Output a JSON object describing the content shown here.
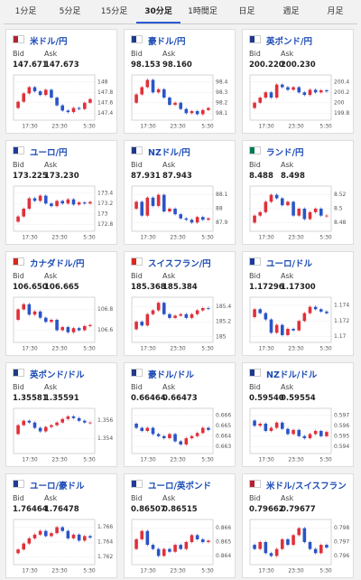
{
  "tabs": [
    {
      "label": "1分足"
    },
    {
      "label": "5分足"
    },
    {
      "label": "15分足"
    },
    {
      "label": "30分足",
      "active": true
    },
    {
      "label": "1時間足"
    },
    {
      "label": "日足"
    },
    {
      "label": "週足"
    },
    {
      "label": "月足"
    }
  ],
  "panels": [
    {
      "name": "米ドル/円",
      "flag_color": "#b22234",
      "bid_label": "Bid",
      "ask_label": "Ask",
      "bid": "147.671",
      "ask": "147.673",
      "chart": {
        "type": "candlestick",
        "values": [
          147.5,
          147.62,
          147.78,
          147.9,
          147.82,
          147.75,
          147.85,
          147.7,
          147.55,
          147.45,
          147.42,
          147.5,
          147.48,
          147.6,
          147.67
        ],
        "ylim": [
          147.3,
          148.1
        ],
        "yticks": [
          148,
          147.8,
          147.6,
          147.4
        ],
        "xticks": [
          "17:30",
          "23:30",
          "5:30"
        ]
      }
    },
    {
      "name": "豪ドル/円",
      "flag_color": "#1f3a8a",
      "bid_label": "Bid",
      "ask_label": "Ask",
      "bid": "98.153",
      "ask": "98.160",
      "chart": {
        "type": "candlestick",
        "values": [
          98.2,
          98.28,
          98.35,
          98.42,
          98.3,
          98.33,
          98.25,
          98.18,
          98.2,
          98.14,
          98.1,
          98.12,
          98.09,
          98.13,
          98.15
        ],
        "ylim": [
          98.05,
          98.45
        ],
        "yticks": [
          98.4,
          98.3,
          98.2,
          98.1
        ],
        "xticks": [
          "17:30",
          "23:30",
          "5:30"
        ]
      }
    },
    {
      "name": "英ポンド/円",
      "flag_color": "#1f3a8a",
      "bid_label": "Bid",
      "ask_label": "Ask",
      "bid": "200.220",
      "ask": "200.230",
      "chart": {
        "type": "candlestick",
        "values": [
          199.9,
          200.0,
          200.1,
          200.2,
          200.1,
          200.35,
          200.3,
          200.25,
          200.3,
          200.2,
          200.15,
          200.25,
          200.2,
          200.24,
          200.22
        ],
        "ylim": [
          199.7,
          200.5
        ],
        "yticks": [
          200.4,
          200.2,
          200,
          199.8
        ],
        "xticks": [
          "17:30",
          "23:30",
          "5:30"
        ]
      }
    },
    {
      "name": "ユーロ/円",
      "flag_color": "#1f3a9a",
      "bid_label": "Bid",
      "ask_label": "Ask",
      "bid": "173.225",
      "ask": "173.230",
      "chart": {
        "type": "candlestick",
        "values": [
          172.85,
          172.95,
          173.1,
          173.3,
          173.25,
          173.35,
          173.2,
          173.15,
          173.25,
          173.2,
          173.28,
          173.18,
          173.22,
          173.2,
          173.23
        ],
        "ylim": [
          172.7,
          173.5
        ],
        "yticks": [
          173.4,
          173.2,
          173,
          172.8
        ],
        "xticks": [
          "17:30",
          "23:30",
          "5:30"
        ]
      }
    },
    {
      "name": "NZドル/円",
      "flag_color": "#1f3a8a",
      "bid_label": "Bid",
      "ask_label": "Ask",
      "bid": "87.931",
      "ask": "87.943",
      "chart": {
        "type": "candlestick",
        "values": [
          88.0,
          88.05,
          87.95,
          88.08,
          88.02,
          88.1,
          87.98,
          88.0,
          87.96,
          87.93,
          87.92,
          87.9,
          87.94,
          87.92,
          87.93
        ],
        "ylim": [
          87.85,
          88.15
        ],
        "yticks": [
          88.1,
          88,
          87.9
        ],
        "xticks": [
          "17:30",
          "23:30",
          "5:30"
        ]
      }
    },
    {
      "name": "ランド/円",
      "flag_color": "#007a4d",
      "bid_label": "Bid",
      "ask_label": "Ask",
      "bid": "8.488",
      "ask": "8.498",
      "chart": {
        "type": "candlestick",
        "values": [
          8.48,
          8.49,
          8.495,
          8.51,
          8.52,
          8.515,
          8.505,
          8.51,
          8.49,
          8.5,
          8.485,
          8.495,
          8.5,
          8.49,
          8.49
        ],
        "ylim": [
          8.47,
          8.53
        ],
        "yticks": [
          8.52,
          8.5,
          8.48
        ],
        "xticks": [
          "17:30",
          "23:30",
          "5:30"
        ]
      }
    },
    {
      "name": "カナダドル/円",
      "flag_color": "#d52b1e",
      "bid_label": "Bid",
      "ask_label": "Ask",
      "bid": "106.650",
      "ask": "106.665",
      "chart": {
        "type": "candlestick",
        "values": [
          106.7,
          106.8,
          106.85,
          106.75,
          106.78,
          106.72,
          106.68,
          106.7,
          106.6,
          106.63,
          106.58,
          106.62,
          106.6,
          106.64,
          106.65
        ],
        "ylim": [
          106.5,
          106.9
        ],
        "yticks": [
          106.8,
          106.6
        ],
        "xticks": [
          "17:30",
          "23:30",
          "5:30"
        ]
      }
    },
    {
      "name": "スイスフラン/円",
      "flag_color": "#d52b1e",
      "bid_label": "Bid",
      "ask_label": "Ask",
      "bid": "185.368",
      "ask": "185.384",
      "chart": {
        "type": "candlestick",
        "values": [
          185.1,
          185.2,
          185.15,
          185.3,
          185.35,
          185.45,
          185.3,
          185.25,
          185.28,
          185.3,
          185.25,
          185.3,
          185.35,
          185.38,
          185.37
        ],
        "ylim": [
          184.95,
          185.5
        ],
        "yticks": [
          185.4,
          185.2,
          185
        ],
        "xticks": [
          "17:30",
          "23:30",
          "5:30"
        ]
      }
    },
    {
      "name": "ユーロ/ドル",
      "flag_color": "#1f3a9a",
      "bid_label": "Bid",
      "ask_label": "Ask",
      "bid": "1.17296",
      "ask": "1.17300",
      "chart": {
        "type": "candlestick",
        "values": [
          1.1725,
          1.1735,
          1.173,
          1.1722,
          1.1705,
          1.1715,
          1.1702,
          1.171,
          1.1708,
          1.172,
          1.173,
          1.1738,
          1.1735,
          1.1732,
          1.173
        ],
        "ylim": [
          1.1695,
          1.1748
        ],
        "yticks": [
          1.174,
          1.172,
          1.17
        ],
        "xticks": [
          "17:30",
          "23:30",
          "5:30"
        ]
      }
    },
    {
      "name": "英ポンド/ドル",
      "flag_color": "#1f3a8a",
      "bid_label": "Bid",
      "ask_label": "Ask",
      "bid": "1.35581",
      "ask": "1.35591",
      "chart": {
        "type": "candlestick",
        "values": [
          1.3545,
          1.3555,
          1.356,
          1.3558,
          1.3552,
          1.3548,
          1.3553,
          1.3555,
          1.3558,
          1.3562,
          1.3565,
          1.3563,
          1.356,
          1.3558,
          1.3558
        ],
        "ylim": [
          1.3525,
          1.3572
        ],
        "yticks": [
          1.356,
          1.354
        ],
        "xticks": [
          "17:30",
          "23:30",
          "5:30"
        ]
      }
    },
    {
      "name": "豪ドル/ドル",
      "flag_color": "#1f3a8a",
      "bid_label": "Bid",
      "ask_label": "Ask",
      "bid": "0.66464",
      "ask": "0.66473",
      "chart": {
        "type": "candlestick",
        "values": [
          0.6652,
          0.6648,
          0.6645,
          0.6648,
          0.6642,
          0.664,
          0.6638,
          0.6642,
          0.6635,
          0.6632,
          0.6638,
          0.664,
          0.6643,
          0.6648,
          0.6646
        ],
        "ylim": [
          0.6625,
          0.6665
        ],
        "yticks": [
          0.666,
          0.665,
          0.664,
          0.663
        ],
        "xticks": [
          "17:30",
          "23:30",
          "5:30"
        ]
      }
    },
    {
      "name": "NZドル/ドル",
      "flag_color": "#1f3a8a",
      "bid_label": "Bid",
      "ask_label": "Ask",
      "bid": "0.59540",
      "ask": "0.59554",
      "chart": {
        "type": "candlestick",
        "values": [
          0.5965,
          0.596,
          0.5962,
          0.5955,
          0.5958,
          0.5963,
          0.5957,
          0.5952,
          0.5956,
          0.595,
          0.5948,
          0.5952,
          0.5955,
          0.595,
          0.5954
        ],
        "ylim": [
          0.5935,
          0.5975
        ],
        "yticks": [
          0.597,
          0.596,
          0.595,
          0.594
        ],
        "xticks": [
          "17:30",
          "23:30",
          "5:30"
        ]
      }
    },
    {
      "name": "ユーロ/豪ドル",
      "flag_color": "#1f3a9a",
      "bid_label": "Bid",
      "ask_label": "Ask",
      "bid": "1.76464",
      "ask": "1.76478",
      "chart": {
        "type": "candlestick",
        "values": [
          1.7625,
          1.763,
          1.7638,
          1.7645,
          1.765,
          1.7655,
          1.7648,
          1.7652,
          1.766,
          1.7655,
          1.7645,
          1.765,
          1.7642,
          1.7648,
          1.7646
        ],
        "ylim": [
          1.7612,
          1.7668
        ],
        "yticks": [
          1.766,
          1.764,
          1.762
        ],
        "xticks": [
          "17:30",
          "23:30",
          "5:30"
        ]
      }
    },
    {
      "name": "ユーロ/英ポンド",
      "flag_color": "#1f3a9a",
      "bid_label": "Bid",
      "ask_label": "Ask",
      "bid": "0.86507",
      "ask": "0.86515",
      "chart": {
        "type": "candlestick",
        "values": [
          0.8645,
          0.8652,
          0.8658,
          0.8648,
          0.8645,
          0.864,
          0.8645,
          0.8643,
          0.8648,
          0.8645,
          0.865,
          0.8655,
          0.8652,
          0.865,
          0.8651
        ],
        "ylim": [
          0.8635,
          0.8665
        ],
        "yticks": [
          0.866,
          0.865,
          0.864
        ],
        "xticks": [
          "17:30",
          "23:30",
          "5:30"
        ]
      }
    },
    {
      "name": "米ドル/スイスフラン",
      "flag_color": "#b22234",
      "bid_label": "Bid",
      "ask_label": "Ask",
      "bid": "0.79662",
      "ask": "0.79677",
      "chart": {
        "type": "candlestick",
        "values": [
          0.7968,
          0.7965,
          0.797,
          0.7962,
          0.796,
          0.7965,
          0.7972,
          0.7968,
          0.7975,
          0.798,
          0.797,
          0.7965,
          0.7962,
          0.7968,
          0.7966
        ],
        "ylim": [
          0.7955,
          0.7985
        ],
        "yticks": [
          0.798,
          0.797,
          0.796
        ],
        "xticks": [
          "17:30",
          "23:30",
          "5:30"
        ]
      }
    }
  ]
}
